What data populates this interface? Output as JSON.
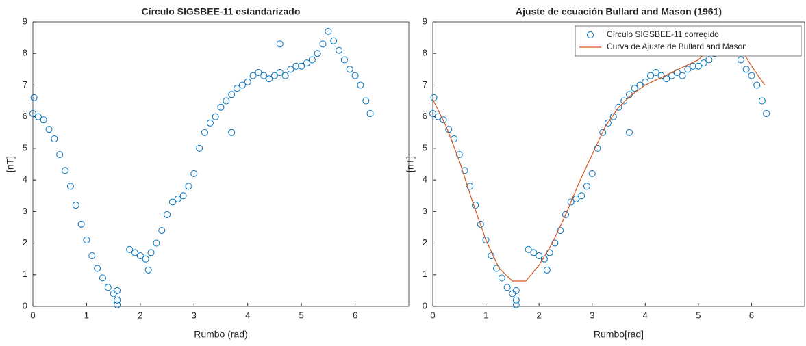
{
  "chart_data": [
    {
      "type": "scatter",
      "title": "Círculo SIGSBEE-11 estandarizado",
      "x_label": "Rumbo (rad)",
      "y_label": "[nT]",
      "xlim": [
        0,
        7
      ],
      "ylim": [
        0,
        9
      ],
      "xticks": [
        0,
        1,
        2,
        3,
        4,
        5,
        6
      ],
      "yticks": [
        0,
        1,
        2,
        3,
        4,
        5,
        6,
        7,
        8,
        9
      ],
      "series": [
        {
          "name": null,
          "color": "#0072BD",
          "marker": "circle",
          "x": [
            0,
            0.02,
            0.1,
            0.2,
            0.3,
            0.4,
            0.5,
            0.6,
            0.7,
            0.8,
            0.9,
            1.0,
            1.1,
            1.2,
            1.3,
            1.4,
            1.5,
            1.57,
            1.57,
            1.57,
            1.8,
            1.9,
            2.0,
            2.1,
            2.15,
            2.2,
            2.3,
            2.4,
            2.5,
            2.6,
            2.7,
            2.8,
            2.9,
            3.0,
            3.1,
            3.2,
            3.3,
            3.4,
            3.5,
            3.6,
            3.7,
            3.7,
            3.8,
            3.9,
            4.0,
            4.1,
            4.2,
            4.3,
            4.4,
            4.5,
            4.6,
            4.6,
            4.7,
            4.8,
            4.9,
            5.0,
            5.1,
            5.2,
            5.3,
            5.4,
            5.5,
            5.6,
            5.7,
            5.8,
            5.9,
            6.0,
            6.1,
            6.2,
            6.28
          ],
          "values": [
            6.1,
            6.6,
            6.0,
            5.9,
            5.6,
            5.3,
            4.8,
            4.3,
            3.8,
            3.2,
            2.6,
            2.1,
            1.6,
            1.2,
            0.9,
            0.6,
            0.4,
            0.2,
            0.5,
            0.05,
            1.8,
            1.7,
            1.6,
            1.5,
            1.15,
            1.7,
            2.0,
            2.4,
            2.9,
            3.3,
            3.4,
            3.5,
            3.8,
            4.2,
            5.0,
            5.5,
            5.8,
            6.0,
            6.3,
            6.5,
            6.7,
            5.5,
            6.9,
            7.0,
            7.1,
            7.3,
            7.4,
            7.3,
            7.2,
            7.3,
            7.4,
            8.3,
            7.3,
            7.5,
            7.6,
            7.6,
            7.7,
            7.8,
            8.0,
            8.3,
            8.7,
            8.4,
            8.1,
            7.8,
            7.5,
            7.3,
            7.0,
            6.5,
            6.1
          ]
        }
      ]
    },
    {
      "type": "scatter",
      "title": "Ajuste de ecuación Bullard and Mason (1961)",
      "x_label": "Rumbo[rad]",
      "y_label": "[nT]",
      "xlim": [
        0,
        7
      ],
      "ylim": [
        0,
        9
      ],
      "xticks": [
        0,
        1,
        2,
        3,
        4,
        5,
        6
      ],
      "yticks": [
        0,
        1,
        2,
        3,
        4,
        5,
        6,
        7,
        8,
        9
      ],
      "legend": "northeast",
      "series": [
        {
          "name": "Círculo SIGSBEE-11 corregido",
          "color": "#0072BD",
          "marker": "circle",
          "x": [
            0,
            0.02,
            0.1,
            0.2,
            0.3,
            0.4,
            0.5,
            0.6,
            0.7,
            0.8,
            0.9,
            1.0,
            1.1,
            1.2,
            1.3,
            1.4,
            1.5,
            1.57,
            1.57,
            1.57,
            1.8,
            1.9,
            2.0,
            2.1,
            2.15,
            2.2,
            2.3,
            2.4,
            2.5,
            2.6,
            2.7,
            2.8,
            2.9,
            3.0,
            3.1,
            3.2,
            3.3,
            3.4,
            3.5,
            3.6,
            3.7,
            3.7,
            3.8,
            3.9,
            4.0,
            4.1,
            4.2,
            4.3,
            4.4,
            4.5,
            4.6,
            4.7,
            4.8,
            4.9,
            5.0,
            5.1,
            5.2,
            5.3,
            5.4,
            5.5,
            5.6,
            5.7,
            5.8,
            5.9,
            6.0,
            6.1,
            6.2,
            6.28
          ],
          "values": [
            6.1,
            6.6,
            6.0,
            5.9,
            5.6,
            5.3,
            4.8,
            4.3,
            3.8,
            3.2,
            2.6,
            2.1,
            1.6,
            1.2,
            0.9,
            0.6,
            0.4,
            0.2,
            0.5,
            0.05,
            1.8,
            1.7,
            1.6,
            1.5,
            1.15,
            1.7,
            2.0,
            2.4,
            2.9,
            3.3,
            3.4,
            3.5,
            3.8,
            4.2,
            5.0,
            5.5,
            5.8,
            6.0,
            6.3,
            6.5,
            6.7,
            5.5,
            6.9,
            7.0,
            7.1,
            7.3,
            7.4,
            7.3,
            7.2,
            7.3,
            7.4,
            7.3,
            7.5,
            7.6,
            7.6,
            7.7,
            7.8,
            8.0,
            8.3,
            8.7,
            8.4,
            8.1,
            7.8,
            7.5,
            7.3,
            7.0,
            6.5,
            6.1
          ]
        },
        {
          "name": "Curva de Ajuste de Bullard and Mason",
          "color": "#D95319",
          "marker": "line",
          "x": [
            0,
            0.25,
            0.5,
            0.75,
            1.0,
            1.25,
            1.5,
            1.75,
            2.0,
            2.25,
            2.5,
            2.75,
            3.0,
            3.25,
            3.5,
            3.75,
            4.0,
            4.25,
            4.5,
            4.75,
            5.0,
            5.25,
            5.5,
            5.75,
            6.0,
            6.25
          ],
          "values": [
            6.55,
            5.7,
            4.6,
            3.3,
            2.1,
            1.2,
            0.8,
            0.8,
            1.3,
            2.0,
            2.9,
            3.9,
            4.8,
            5.7,
            6.3,
            6.7,
            7.0,
            7.2,
            7.4,
            7.6,
            7.8,
            8.2,
            8.6,
            8.3,
            7.6,
            7.0
          ]
        }
      ]
    }
  ]
}
